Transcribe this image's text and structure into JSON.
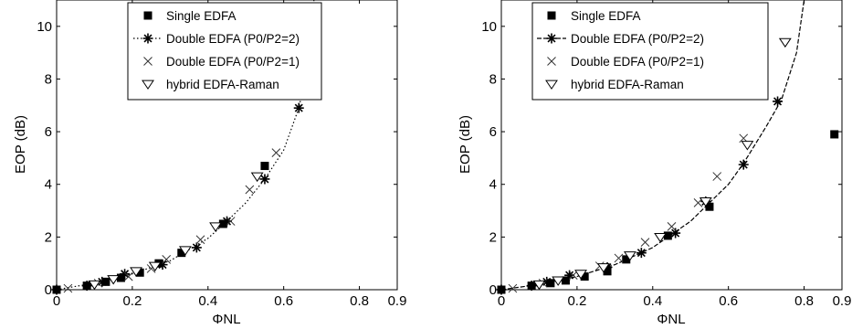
{
  "chart_data": [
    {
      "type": "scatter",
      "xlabel": "ΦNL",
      "ylabel": "EOP (dB)",
      "xlim": [
        0,
        0.9
      ],
      "ylim": [
        0,
        11
      ],
      "xticks": [
        "0",
        "0.2",
        "0.4",
        "0.6",
        "0.8",
        "0.9"
      ],
      "xtick_values": [
        0,
        0.2,
        0.4,
        0.6,
        0.8,
        0.9
      ],
      "yticks": [
        "0",
        "2",
        "4",
        "6",
        "8",
        "10"
      ],
      "ytick_values": [
        0,
        2,
        4,
        6,
        8,
        10
      ],
      "legend_position": "top-center",
      "fit_curve": {
        "style": "dotted",
        "x": [
          0,
          0.1,
          0.2,
          0.3,
          0.4,
          0.45,
          0.5,
          0.55,
          0.6,
          0.64,
          0.66,
          0.68
        ],
        "y": [
          0,
          0.25,
          0.6,
          1.1,
          1.95,
          2.6,
          3.3,
          4.2,
          5.3,
          6.9,
          8.2,
          11
        ]
      },
      "series": [
        {
          "name": "Single EDFA",
          "marker": "square-filled",
          "x": [
            0,
            0.08,
            0.13,
            0.17,
            0.22,
            0.27,
            0.33,
            0.44,
            0.55
          ],
          "y": [
            0,
            0.15,
            0.3,
            0.45,
            0.65,
            1.0,
            1.4,
            2.5,
            4.7
          ]
        },
        {
          "name": "Double EDFA (P0/P2=2)",
          "marker": "asterisk",
          "line": "dotted",
          "x": [
            0,
            0.08,
            0.12,
            0.18,
            0.28,
            0.37,
            0.45,
            0.55,
            0.64
          ],
          "y": [
            0,
            0.15,
            0.3,
            0.6,
            0.95,
            1.6,
            2.6,
            4.2,
            6.9
          ]
        },
        {
          "name": "Double EDFA (P0/P2=1)",
          "marker": "x",
          "x": [
            0.03,
            0.11,
            0.19,
            0.25,
            0.29,
            0.38,
            0.46,
            0.51,
            0.58
          ],
          "y": [
            0.05,
            0.25,
            0.5,
            0.8,
            1.15,
            1.9,
            2.6,
            3.8,
            5.2
          ]
        },
        {
          "name": "hybrid EDFA-Raman",
          "marker": "triangle-down",
          "x": [
            0.1,
            0.15,
            0.21,
            0.26,
            0.34,
            0.42,
            0.53,
            0.64
          ],
          "y": [
            0.2,
            0.4,
            0.7,
            0.9,
            1.5,
            2.4,
            4.3,
            7.4
          ]
        }
      ]
    },
    {
      "type": "scatter",
      "xlabel": "ΦNL",
      "ylabel": "EOP (dB)",
      "xlim": [
        0,
        0.9
      ],
      "ylim": [
        0,
        11
      ],
      "xticks": [
        "0",
        "0.2",
        "0.4",
        "0.6",
        "0.8",
        "0.9"
      ],
      "xtick_values": [
        0,
        0.2,
        0.4,
        0.6,
        0.8,
        0.9
      ],
      "yticks": [
        "0",
        "2",
        "4",
        "6",
        "8",
        "10"
      ],
      "ytick_values": [
        0,
        2,
        4,
        6,
        8,
        10
      ],
      "legend_position": "top-center",
      "fit_curve": {
        "style": "dashed",
        "x": [
          0,
          0.1,
          0.2,
          0.3,
          0.4,
          0.45,
          0.5,
          0.55,
          0.6,
          0.64,
          0.7,
          0.74,
          0.78,
          0.8
        ],
        "y": [
          0,
          0.2,
          0.5,
          0.95,
          1.6,
          2.1,
          2.6,
          3.3,
          4.0,
          4.8,
          6.2,
          7.2,
          9.0,
          11
        ]
      },
      "series": [
        {
          "name": "Single EDFA",
          "marker": "square-filled",
          "x": [
            0,
            0.08,
            0.13,
            0.17,
            0.22,
            0.28,
            0.33,
            0.44,
            0.55,
            0.88
          ],
          "y": [
            0,
            0.15,
            0.25,
            0.35,
            0.5,
            0.7,
            1.15,
            2.05,
            3.15,
            5.9
          ]
        },
        {
          "name": "Double EDFA (P0/P2=2)",
          "marker": "asterisk",
          "line": "dashed",
          "x": [
            0,
            0.08,
            0.12,
            0.18,
            0.28,
            0.37,
            0.46,
            0.54,
            0.64,
            0.73
          ],
          "y": [
            0,
            0.15,
            0.3,
            0.55,
            0.85,
            1.4,
            2.15,
            3.35,
            4.75,
            7.15
          ]
        },
        {
          "name": "Double EDFA (P0/P2=1)",
          "marker": "x",
          "x": [
            0.03,
            0.11,
            0.19,
            0.26,
            0.31,
            0.38,
            0.45,
            0.52,
            0.57,
            0.64
          ],
          "y": [
            0.05,
            0.25,
            0.55,
            0.9,
            1.2,
            1.8,
            2.4,
            3.3,
            4.3,
            5.75
          ]
        },
        {
          "name": "hybrid EDFA-Raman",
          "marker": "triangle-down",
          "x": [
            0.1,
            0.15,
            0.21,
            0.27,
            0.34,
            0.42,
            0.54,
            0.65,
            0.75
          ],
          "y": [
            0.2,
            0.35,
            0.6,
            0.85,
            1.3,
            2.0,
            3.35,
            5.5,
            9.4
          ]
        }
      ]
    }
  ]
}
